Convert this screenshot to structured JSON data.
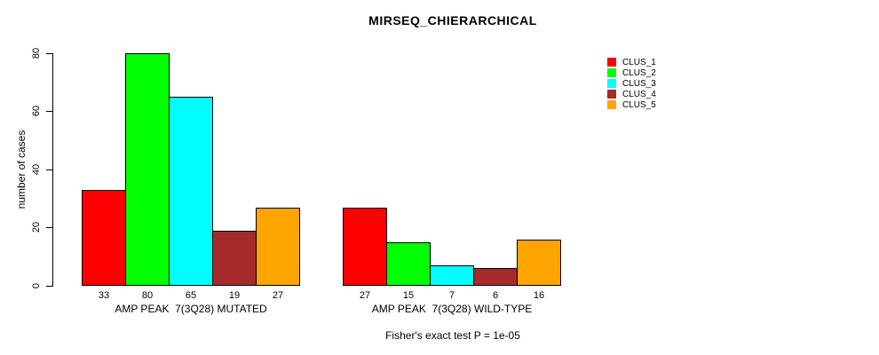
{
  "title": "MIRSEQ_CHIERARCHICAL",
  "footer": "Fisher's exact test P = 1e-05",
  "chart_data": {
    "type": "bar",
    "title": "MIRSEQ_CHIERARCHICAL",
    "ylabel": "number of cases",
    "xlabel": "",
    "ylim": [
      0,
      80
    ],
    "yticks": [
      0,
      20,
      40,
      60,
      80
    ],
    "grid": false,
    "legend_position": "right-outside",
    "categories": [
      "AMP PEAK  7(3Q28) MUTATED",
      "AMP PEAK  7(3Q28) WILD-TYPE"
    ],
    "series": [
      {
        "name": "CLUS_1",
        "color": "#FF0000",
        "values": [
          33,
          27
        ]
      },
      {
        "name": "CLUS_2",
        "color": "#00FF00",
        "values": [
          80,
          15
        ]
      },
      {
        "name": "CLUS_3",
        "color": "#00FFFF",
        "values": [
          65,
          7
        ]
      },
      {
        "name": "CLUS_4",
        "color": "#A52A2A",
        "values": [
          19,
          6
        ]
      },
      {
        "name": "CLUS_5",
        "color": "#FFA500",
        "values": [
          27,
          16
        ]
      }
    ],
    "bar_value_labels": {
      "AMP PEAK  7(3Q28) MUTATED": [
        33,
        80,
        65,
        19,
        27
      ],
      "AMP PEAK  7(3Q28) WILD-TYPE": [
        27,
        15,
        7,
        6,
        16
      ]
    },
    "annotation": "Fisher's exact test P = 1e-05"
  }
}
